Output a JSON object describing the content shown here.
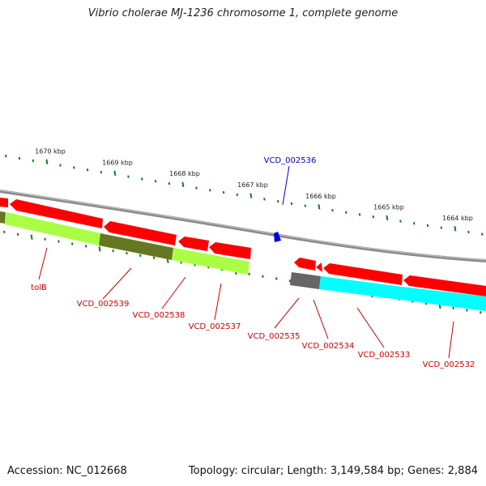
{
  "title": "Vibrio cholerae MJ-1236 chromosome 1, complete genome",
  "footer": {
    "accession": "Accession: NC_012668",
    "summary": "Topology: circular; Length: 3,149,584 bp; Genes: 2,884"
  },
  "scale_labels": [
    "1670 kbp",
    "1669 kbp",
    "1668 kbp",
    "1667 kbp",
    "1666 kbp",
    "1665 kbp",
    "1664 kbp"
  ],
  "genes": [
    {
      "label": "tolB",
      "color": "#cc0000"
    },
    {
      "label": "VCD_002539",
      "color": "#cc0000"
    },
    {
      "label": "VCD_002538",
      "color": "#cc0000"
    },
    {
      "label": "VCD_002537",
      "color": "#cc0000"
    },
    {
      "label": "VCD_002536",
      "color": "#0000cc"
    },
    {
      "label": "VCD_002535",
      "color": "#cc0000"
    },
    {
      "label": "VCD_002534",
      "color": "#cc0000"
    },
    {
      "label": "VCD_002533",
      "color": "#cc0000"
    },
    {
      "label": "VCD_002532",
      "color": "#cc0000"
    }
  ],
  "colors": {
    "cds_red": "#ff0000",
    "backbone": "#8a8a8a",
    "tick_green": "#1a7a1a",
    "lime": "#aaff44",
    "olive": "#667722",
    "cyan": "#00ffff",
    "gray_block": "#666666",
    "blue_marker": "#0000ee"
  }
}
